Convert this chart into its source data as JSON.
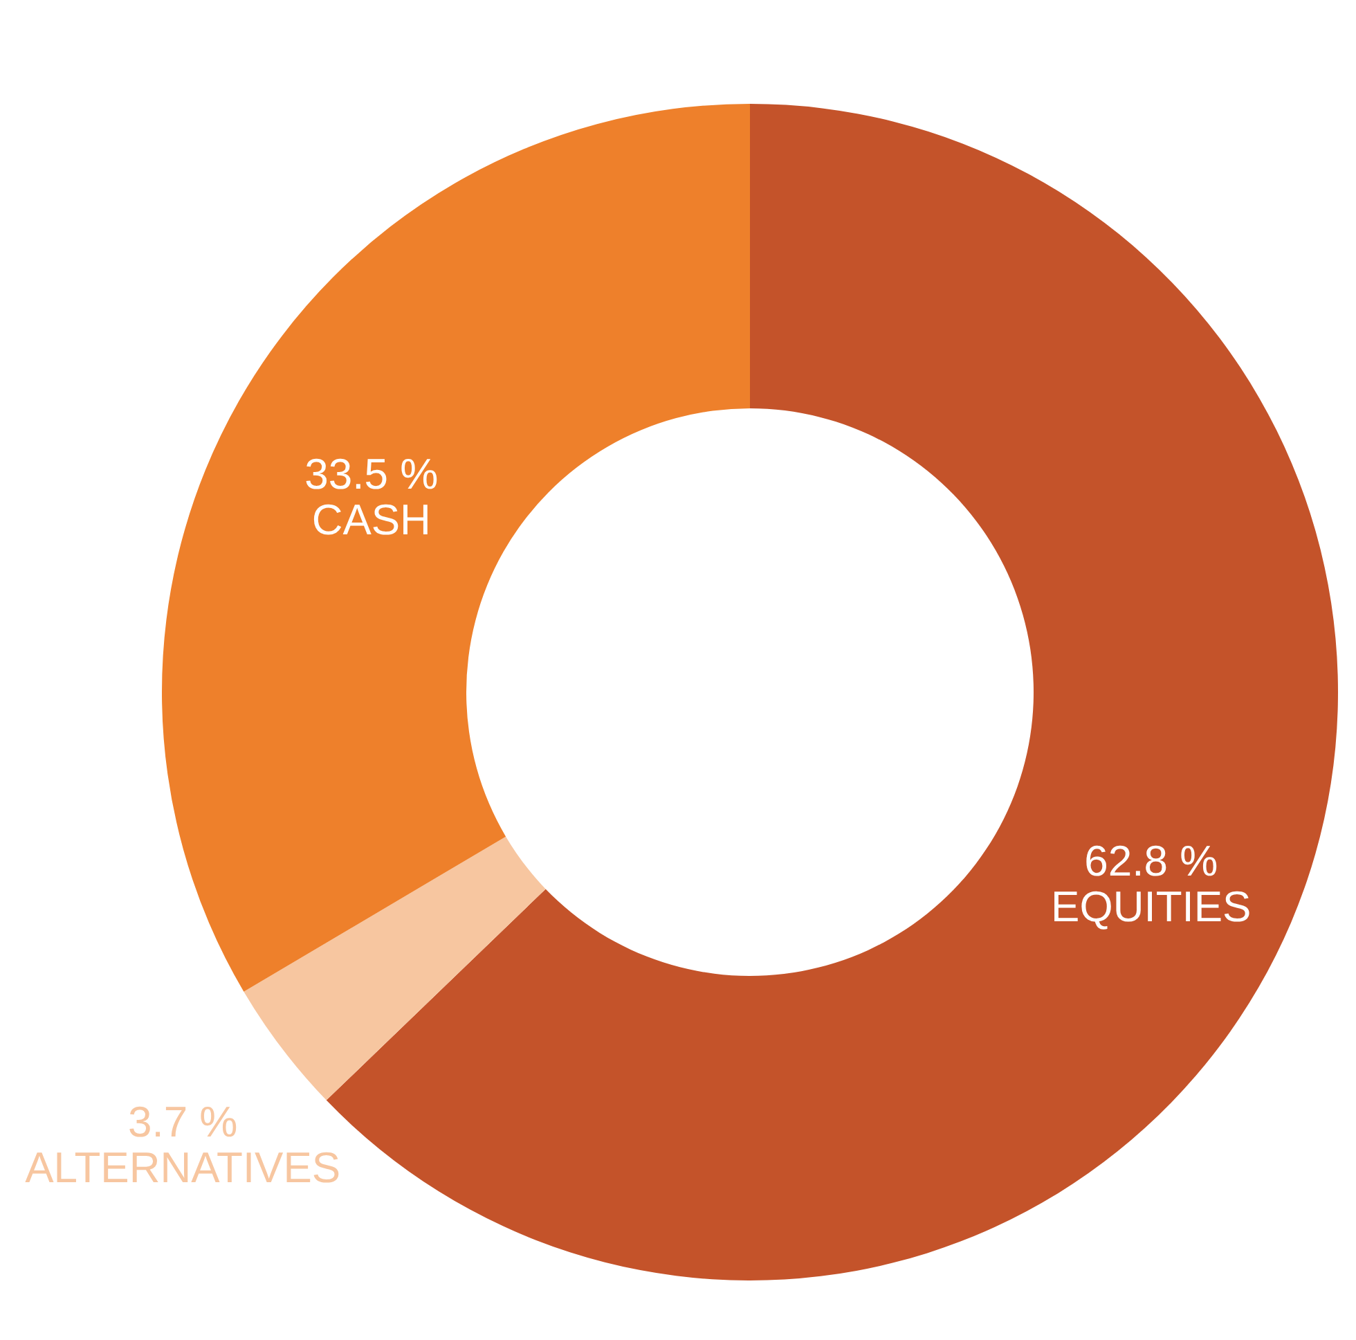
{
  "chart_data": {
    "type": "donut",
    "categories": [
      "EQUITIES",
      "ALTERNATIVES",
      "CASH"
    ],
    "values": [
      62.8,
      3.7,
      33.5
    ],
    "value_labels": [
      "62.8 %",
      "3.7 %",
      "33.5 %"
    ],
    "colors": [
      "#c4532a",
      "#f7c6a0",
      "#ee802b"
    ],
    "legend": false
  }
}
